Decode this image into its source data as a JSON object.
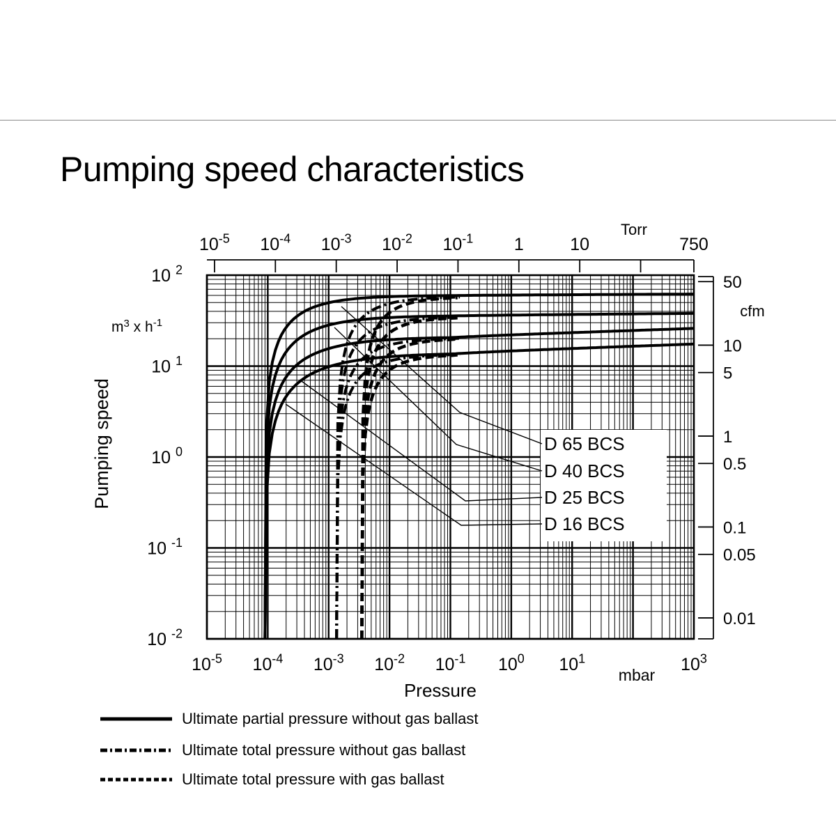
{
  "page": {
    "title": "Pumping speed characteristics"
  },
  "chart_data": {
    "type": "line",
    "title": "Pumping speed characteristics",
    "xlabel": "Pressure",
    "x_unit": "mbar",
    "ylabel": "Pumping speed",
    "y_unit": {
      "base": "m³ x h",
      "sup": "-1"
    },
    "x_scale": "log",
    "y_scale": "log",
    "xlim": [
      1e-05,
      1000
    ],
    "ylim": [
      0.01,
      100
    ],
    "grid": true,
    "x_ticks": [
      {
        "value": 1e-05,
        "base": "10",
        "exp": "-5"
      },
      {
        "value": 0.0001,
        "base": "10",
        "exp": "-4"
      },
      {
        "value": 0.001,
        "base": "10",
        "exp": "-3"
      },
      {
        "value": 0.01,
        "base": "10",
        "exp": "-2"
      },
      {
        "value": 0.1,
        "base": "10",
        "exp": "-1"
      },
      {
        "value": 1,
        "base": "10",
        "exp": "0"
      },
      {
        "value": 10,
        "base": "10",
        "exp": "1"
      },
      {
        "value": 1000,
        "base": "10",
        "exp": "3"
      }
    ],
    "y_ticks": [
      {
        "value": 100,
        "base": "10",
        "exp": "2"
      },
      {
        "value": 10,
        "base": "10",
        "exp": "1"
      },
      {
        "value": 1,
        "base": "10",
        "exp": "0"
      },
      {
        "value": 0.1,
        "base": "10",
        "exp": "-1"
      },
      {
        "value": 0.01,
        "base": "10",
        "exp": "-2"
      }
    ],
    "top_axis": {
      "unit": "Torr",
      "ticks": [
        {
          "value": 1e-05,
          "base": "10",
          "exp": "-5"
        },
        {
          "value": 0.0001,
          "base": "10",
          "exp": "-4"
        },
        {
          "value": 0.001,
          "base": "10",
          "exp": "-3"
        },
        {
          "value": 0.01,
          "base": "10",
          "exp": "-2"
        },
        {
          "value": 0.1,
          "base": "10",
          "exp": "-1"
        },
        {
          "value": 1,
          "base": "1",
          "exp": ""
        },
        {
          "value": 10,
          "base": "10",
          "exp": ""
        },
        {
          "value": 750,
          "base": "750",
          "exp": ""
        }
      ]
    },
    "right_axis": {
      "unit": "cfm",
      "ticks": [
        50,
        10,
        5,
        1,
        0.5,
        0.1,
        0.05,
        0.01
      ]
    },
    "series": [
      {
        "name": "D 65 BCS",
        "partial_asymptote": 60,
        "partial_end": 62,
        "without_gas_ballast_start": 0.00135,
        "with_gas_ballast_start": 0.0035
      },
      {
        "name": "D 40 BCS",
        "partial_asymptote": 36,
        "partial_end": 38,
        "without_gas_ballast_start": 0.00135,
        "with_gas_ballast_start": 0.0035
      },
      {
        "name": "D 25 BCS",
        "partial_asymptote": 21,
        "partial_end": 26,
        "without_gas_ballast_start": 0.00135,
        "with_gas_ballast_start": 0.0035
      },
      {
        "name": "D 16 BCS",
        "partial_asymptote": 14,
        "partial_end": 17.5,
        "without_gas_ballast_start": 0.00135,
        "with_gas_ballast_start": 0.0035
      }
    ],
    "partial_pressure_start": 9e-05,
    "legend": {
      "placement": "bottom",
      "items": [
        {
          "style": "solid",
          "label": "Ultimate partial pressure without gas ballast"
        },
        {
          "style": "dash-dot",
          "label": "Ultimate total pressure without gas ballast"
        },
        {
          "style": "dashed",
          "label": "Ultimate total pressure with gas ballast"
        }
      ]
    }
  }
}
